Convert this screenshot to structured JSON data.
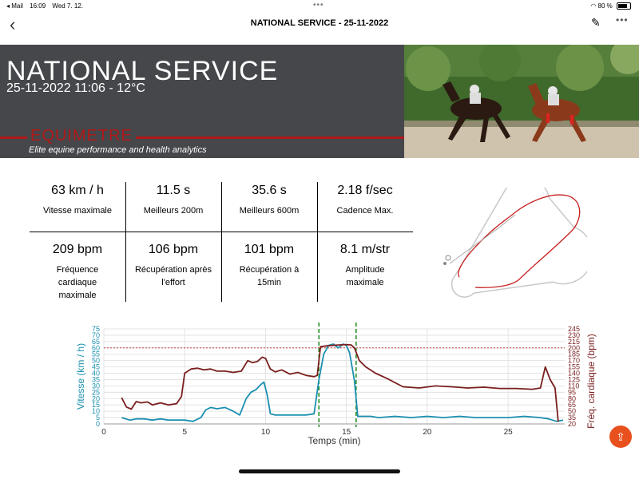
{
  "status_bar": {
    "back_app": "◂ Mail",
    "time": "16:09",
    "date": "Wed 7. 12.",
    "battery_text": "80 %",
    "battery_level": 0.8
  },
  "nav": {
    "title": "NATIONAL SERVICE - 25-11-2022"
  },
  "banner": {
    "title": "NATIONAL SERVICE",
    "subtitle": "25-11-2022 11:06 - 12°C",
    "logo": "EQUIMETRE",
    "tagline": "Elite equine performance and health analytics",
    "accent_color": "#b01818"
  },
  "stats": [
    {
      "value": "63 km / h",
      "label": "Vitesse maximale"
    },
    {
      "value": "11.5 s",
      "label": "Meilleurs 200m"
    },
    {
      "value": "35.6 s",
      "label": "Meilleurs 600m"
    },
    {
      "value": "2.18 f/sec",
      "label": "Cadence Max."
    },
    {
      "value": "209 bpm",
      "label": "Fréquence cardiaque maximale"
    },
    {
      "value": "106 bpm",
      "label": "Récupération après l'effort"
    },
    {
      "value": "101 bpm",
      "label": "Récupération à 15min"
    },
    {
      "value": "8.1 m/str",
      "label": "Amplitude maximale"
    }
  ],
  "chart_data": {
    "type": "line",
    "xlabel": "Temps (min)",
    "ylabel_left": "Vitesse (km / h)",
    "ylabel_right": "Fréq. cardiaque (bpm)",
    "xlim": [
      0,
      28.5
    ],
    "xticks": [
      0,
      5,
      10,
      15,
      20,
      25
    ],
    "ylim_left": [
      0,
      75
    ],
    "yticks_left": [
      0,
      5,
      10,
      15,
      20,
      25,
      30,
      35,
      40,
      45,
      50,
      55,
      60,
      65,
      70,
      75
    ],
    "ylim_right": [
      20,
      245
    ],
    "yticks_right": [
      20,
      35,
      50,
      65,
      80,
      95,
      110,
      125,
      140,
      155,
      170,
      185,
      200,
      215,
      230,
      245
    ],
    "reference_line_right": 200,
    "vertical_markers": [
      13.3,
      15.6
    ],
    "grid": true,
    "colors": {
      "speed": "#1a8fb0",
      "heart": "#7a1f1f",
      "marker": "#1a8a1a",
      "reference": "#c04040"
    },
    "series": [
      {
        "axis": "left",
        "x": [
          1.1,
          1.6,
          2.0,
          2.5,
          3.0,
          3.5,
          4.0,
          4.5,
          5.0,
          5.5,
          6.0,
          6.3,
          6.6,
          7.0,
          7.5,
          8.0,
          8.4,
          8.8,
          9.1,
          9.4,
          9.7,
          9.9,
          10.1,
          10.3,
          10.6,
          11,
          11.5,
          12,
          12.5,
          13,
          13.3,
          13.6,
          13.9,
          14.2,
          14.5,
          14.8,
          15.0,
          15.2,
          15.5,
          15.7,
          16,
          16.5,
          17,
          18,
          19,
          20,
          21,
          22,
          23,
          24,
          25,
          26,
          27,
          27.5,
          28.0,
          28.4
        ],
        "values": [
          5,
          3,
          4,
          4,
          3,
          4,
          3,
          3,
          3,
          2,
          5,
          11,
          13,
          12,
          13,
          10,
          7,
          20,
          25,
          27,
          31,
          33,
          23,
          8,
          7,
          7,
          7,
          7,
          7,
          8,
          35,
          55,
          62,
          63,
          60,
          63,
          62,
          56,
          34,
          6,
          6,
          6,
          5,
          6,
          5,
          6,
          5,
          6,
          5,
          5,
          5,
          6,
          5,
          4,
          2,
          3
        ]
      },
      {
        "axis": "right",
        "x": [
          1.1,
          1.4,
          1.7,
          2.0,
          2.3,
          2.7,
          3.0,
          3.5,
          4.0,
          4.5,
          4.8,
          5.0,
          5.4,
          5.8,
          6.2,
          6.6,
          7.0,
          7.5,
          8.0,
          8.5,
          8.9,
          9.2,
          9.5,
          9.8,
          10.0,
          10.3,
          10.6,
          11,
          11.5,
          12,
          12.5,
          13,
          13.2,
          13.4,
          13.8,
          14.5,
          15.0,
          15.3,
          15.5,
          15.8,
          16.2,
          16.8,
          17.5,
          18.5,
          19.5,
          20.5,
          21.5,
          22.5,
          23.5,
          24.5,
          25.5,
          26.5,
          27.0,
          27.3,
          27.6,
          27.9,
          28.1
        ],
        "values": [
          82,
          60,
          55,
          73,
          70,
          72,
          65,
          70,
          65,
          68,
          85,
          140,
          150,
          152,
          148,
          150,
          145,
          145,
          142,
          145,
          170,
          165,
          168,
          178,
          175,
          150,
          143,
          148,
          138,
          142,
          135,
          132,
          135,
          203,
          205,
          207,
          208,
          207,
          200,
          170,
          155,
          140,
          128,
          108,
          105,
          110,
          108,
          105,
          107,
          104,
          104,
          102,
          105,
          155,
          125,
          105,
          25
        ]
      }
    ]
  }
}
